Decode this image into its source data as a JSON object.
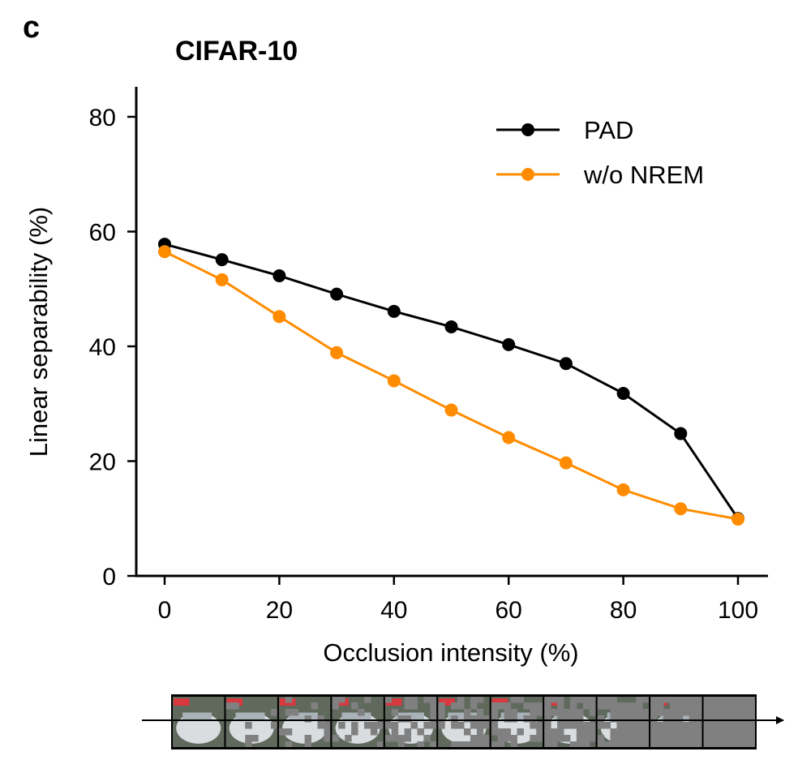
{
  "panel_label": "c",
  "chart_data": {
    "type": "line",
    "title": "CIFAR-10",
    "xlabel": "Occlusion intensity (%)",
    "ylabel": "Linear separability (%)",
    "x": [
      0,
      10,
      20,
      30,
      40,
      50,
      60,
      70,
      80,
      90,
      100
    ],
    "xlim": [
      -5,
      105
    ],
    "ylim": [
      0,
      85
    ],
    "xticks": [
      0,
      20,
      40,
      60,
      80,
      100
    ],
    "yticks": [
      0,
      20,
      40,
      60,
      80
    ],
    "xtick_labels": [
      "0",
      "20",
      "40",
      "60",
      "80",
      "100"
    ],
    "ytick_labels": [
      "0",
      "20",
      "40",
      "60",
      "80"
    ],
    "grid": false,
    "legend_position": "top-right",
    "series": [
      {
        "name": "PAD",
        "color": "#000000",
        "values": [
          57.8,
          55.1,
          52.3,
          49.1,
          46.1,
          43.4,
          40.3,
          37.0,
          31.8,
          24.8,
          10.0
        ]
      },
      {
        "name": "w/o NREM",
        "color": "#FF8C00",
        "values": [
          56.5,
          51.6,
          45.2,
          38.9,
          34.0,
          28.9,
          24.1,
          19.7,
          15.0,
          11.7,
          9.9
        ]
      }
    ]
  },
  "strip": {
    "description_icon": "occluded-car-thumbnails",
    "frames": [
      0,
      10,
      20,
      30,
      40,
      50,
      60,
      70,
      80,
      90,
      100
    ]
  }
}
